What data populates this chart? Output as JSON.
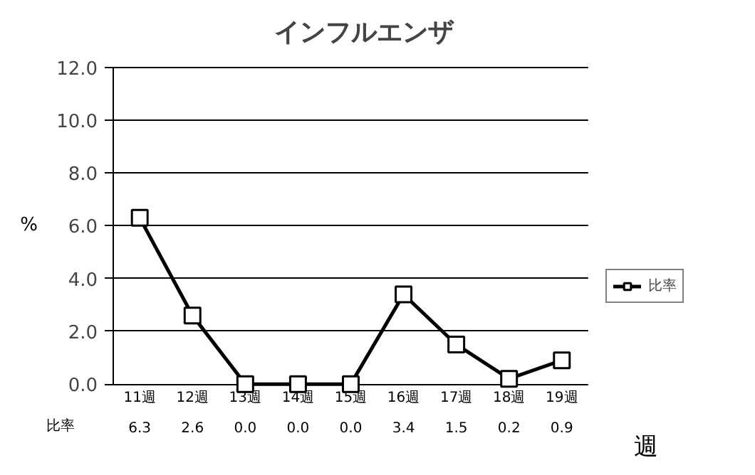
{
  "chart_data": {
    "type": "line",
    "title": "インフルエンザ",
    "ylabel": "%",
    "xlabel": "週",
    "categories": [
      "11週",
      "12週",
      "13週",
      "14週",
      "15週",
      "16週",
      "17週",
      "18週",
      "19週"
    ],
    "series": [
      {
        "name": "比率",
        "color": "#000000",
        "values": [
          6.3,
          2.6,
          0.0,
          0.0,
          0.0,
          3.4,
          1.5,
          0.2,
          0.9
        ],
        "value_labels": [
          "6.3",
          "2.6",
          "0.0",
          "0.0",
          "0.0",
          "3.4",
          "1.5",
          "0.2",
          "0.9"
        ]
      }
    ],
    "ylim": [
      0,
      12
    ],
    "yticks": [
      {
        "value": 0,
        "label": "0.0"
      },
      {
        "value": 2,
        "label": "2.0"
      },
      {
        "value": 4,
        "label": "4.0"
      },
      {
        "value": 6,
        "label": "6.0"
      },
      {
        "value": 8,
        "label": "8.0"
      },
      {
        "value": 10,
        "label": "10.0"
      },
      {
        "value": 12,
        "label": "12.0"
      }
    ],
    "grid": "y",
    "legend": "right",
    "marker": "square",
    "line_style": "solid"
  }
}
